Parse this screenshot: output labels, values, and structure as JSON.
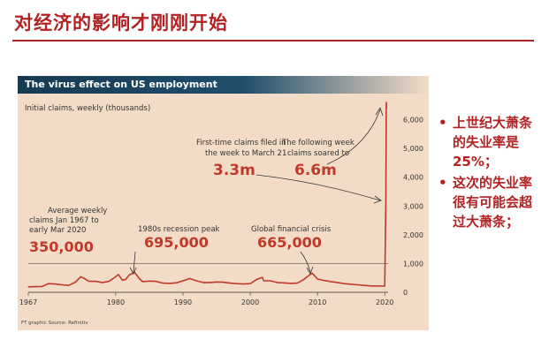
{
  "slide": {
    "title": "对经济的影响才刚刚开始",
    "bullets": [
      "上世纪大萧条的失业率是25%；",
      "这次的失业率很有可能会超过大萧条；"
    ]
  },
  "chart_data": {
    "type": "line",
    "title": "The virus effect on US employment",
    "ylabel": "Initial claims, weekly (thousands)",
    "xlim": [
      1967,
      2020.5
    ],
    "ylim": [
      0,
      6600
    ],
    "yticks": [
      0,
      1000,
      2000,
      3000,
      4000,
      5000,
      6000
    ],
    "yticklabels": [
      "0",
      "1,000",
      "2,000",
      "3,000",
      "4,000",
      "5,000",
      "6,000"
    ],
    "xticks": [
      1967,
      1980,
      1990,
      2000,
      2010,
      2020
    ],
    "reference_line": 1000,
    "series": [
      {
        "x": [
          1967,
          1968,
          1969,
          1970,
          1971,
          1972,
          1973,
          1974,
          1974.8,
          1975.2,
          1976,
          1977,
          1978,
          1979,
          1980,
          1980.4,
          1981,
          1981.5,
          1982,
          1982.8,
          1983.5,
          1984,
          1985,
          1986,
          1987,
          1988,
          1989,
          1990,
          1991,
          1992,
          1993,
          1994,
          1995,
          1996,
          1997,
          1998,
          1999,
          2000,
          2001,
          2001.8,
          2002,
          2003,
          2004,
          2005,
          2006,
          2007,
          2008,
          2008.8,
          2009.2,
          2009.8,
          2010,
          2011,
          2012,
          2013,
          2014,
          2015,
          2016,
          2017,
          2018,
          2019,
          2020.0,
          2020.17,
          2020.22,
          2020.26
        ],
        "y": [
          190,
          195,
          200,
          300,
          290,
          260,
          240,
          350,
          540,
          500,
          380,
          380,
          340,
          380,
          540,
          620,
          420,
          450,
          600,
          695,
          480,
          370,
          390,
          380,
          320,
          310,
          330,
          400,
          480,
          400,
          340,
          340,
          360,
          350,
          320,
          300,
          290,
          300,
          450,
          520,
          400,
          400,
          340,
          330,
          310,
          320,
          450,
          600,
          665,
          520,
          460,
          410,
          370,
          340,
          300,
          280,
          260,
          240,
          220,
          220,
          215,
          3300,
          6600,
          6400
        ]
      }
    ],
    "annotations": [
      {
        "text": "Average weekly",
        "text2": "claims Jan 1967 to",
        "text3": "early Mar 2020",
        "value": "350,000"
      },
      {
        "text": "1980s recession peak",
        "value": "695,000"
      },
      {
        "text": "Global financial crisis",
        "value": "665,000"
      },
      {
        "text": "First-time claims filed in",
        "text2": "the week to March 21",
        "value": "3.3m"
      },
      {
        "text": "The following week",
        "text2": "claims soared to",
        "value": "6.6m"
      }
    ],
    "source": "FT graphic  Source: Refinitiv"
  },
  "colors": {
    "accent": "#b22222",
    "panel": "#f3dcc7",
    "header": "#1f4e6b"
  }
}
